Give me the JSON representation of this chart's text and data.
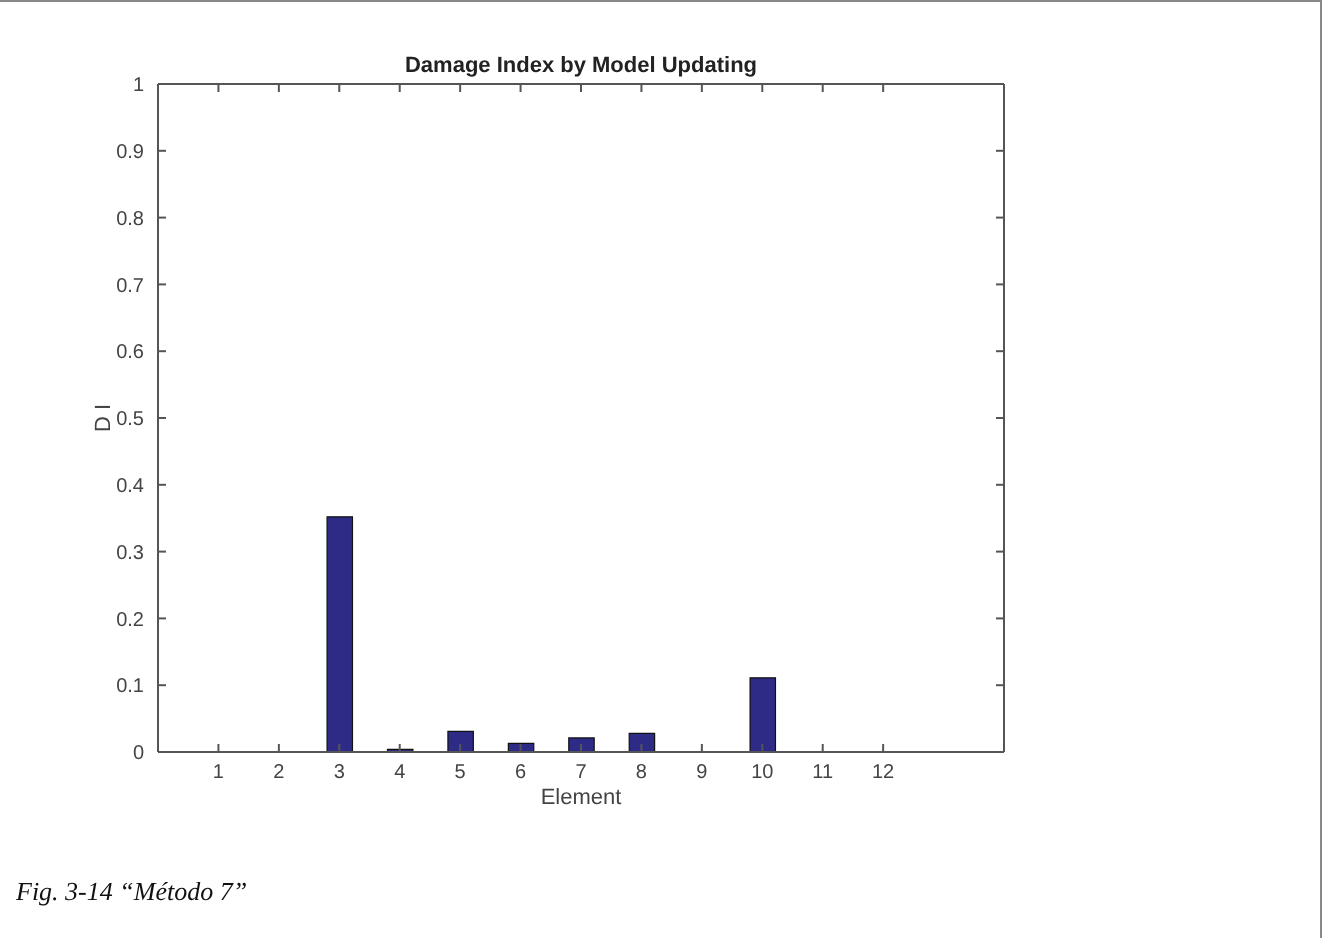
{
  "chart_data": {
    "type": "bar",
    "title": "Damage Index by Model Updating",
    "xlabel": "Element",
    "ylabel": "D I",
    "x": [
      1,
      2,
      3,
      4,
      5,
      6,
      7,
      8,
      9,
      10,
      11,
      12
    ],
    "values": [
      0,
      0,
      0.352,
      0.004,
      0.031,
      0.013,
      0.021,
      0.028,
      0,
      0.111,
      0,
      0
    ],
    "color": "#2e2b87",
    "xlim": [
      0,
      14
    ],
    "xticks": [
      1,
      2,
      3,
      4,
      5,
      6,
      7,
      8,
      9,
      10,
      11,
      12
    ],
    "ylim": [
      0,
      1
    ],
    "yticks": [
      0,
      0.1,
      0.2,
      0.3,
      0.4,
      0.5,
      0.6,
      0.7,
      0.8,
      0.9,
      1
    ],
    "annotations": [
      "Fig. 3-14 “Método 7”"
    ]
  }
}
